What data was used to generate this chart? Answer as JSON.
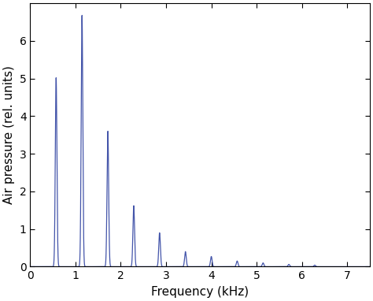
{
  "title": "",
  "xlabel": "Frequency (kHz)",
  "ylabel": "Air pressure (rel. units)",
  "xlim": [
    0,
    7.5
  ],
  "ylim": [
    0,
    7.0
  ],
  "yticks": [
    0,
    1,
    2,
    3,
    4,
    5,
    6
  ],
  "xticks": [
    0,
    1,
    2,
    3,
    4,
    5,
    6,
    7
  ],
  "line_color": "#4455aa",
  "background_color": "#ffffff",
  "peaks": [
    {
      "freq": 0.571,
      "amp": 5.02
    },
    {
      "freq": 1.143,
      "amp": 6.68
    },
    {
      "freq": 1.714,
      "amp": 3.6
    },
    {
      "freq": 2.286,
      "amp": 1.62
    },
    {
      "freq": 2.857,
      "amp": 0.9
    },
    {
      "freq": 3.428,
      "amp": 0.4
    },
    {
      "freq": 4.0,
      "amp": 0.27
    },
    {
      "freq": 4.571,
      "amp": 0.15
    },
    {
      "freq": 5.143,
      "amp": 0.1
    },
    {
      "freq": 5.714,
      "amp": 0.06
    },
    {
      "freq": 6.285,
      "amp": 0.04
    }
  ]
}
